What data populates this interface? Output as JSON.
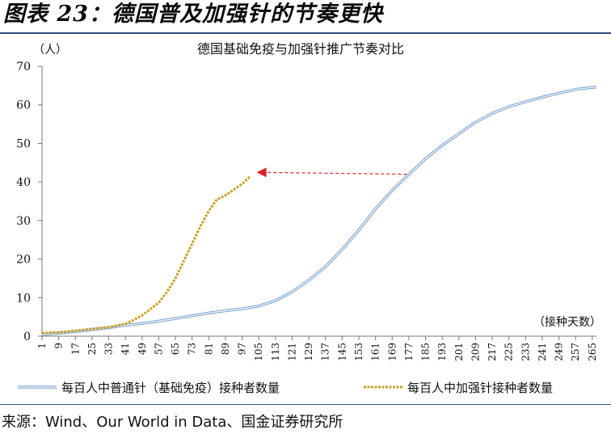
{
  "figure_title": "图表 23：德国普及加强针的节奏更快",
  "source": "来源：Wind、Our World in Data、国金证券研究所",
  "chart_data": {
    "type": "line",
    "title": "德国基础免疫与加强针推广节奏对比",
    "ylabel": "（人）",
    "xlabel": "（接种天数）",
    "ylim": [
      0,
      70
    ],
    "yticks": [
      0,
      10,
      20,
      30,
      40,
      50,
      60,
      70
    ],
    "xlim": [
      1,
      267
    ],
    "xticks": [
      1,
      9,
      17,
      25,
      33,
      41,
      49,
      57,
      65,
      73,
      81,
      89,
      97,
      105,
      113,
      121,
      129,
      137,
      145,
      153,
      161,
      169,
      177,
      185,
      193,
      201,
      209,
      217,
      225,
      233,
      241,
      249,
      257,
      265
    ],
    "grid": false,
    "legend_position": "bottom",
    "series": [
      {
        "name": "每百人中普通针（基础免疫）接种者数量",
        "color": "#7aa3d0",
        "style": "double",
        "x": [
          1,
          9,
          17,
          25,
          33,
          41,
          49,
          57,
          65,
          73,
          81,
          89,
          97,
          105,
          113,
          121,
          129,
          137,
          145,
          153,
          161,
          169,
          177,
          185,
          193,
          201,
          209,
          217,
          225,
          233,
          241,
          249,
          257,
          265,
          267
        ],
        "y": [
          0.4,
          0.8,
          1.2,
          1.7,
          2.2,
          2.8,
          3.3,
          3.9,
          4.6,
          5.3,
          6.0,
          6.6,
          7.1,
          7.8,
          9.2,
          11.5,
          14.5,
          18.0,
          22.5,
          27.5,
          33.0,
          37.8,
          42.0,
          46.0,
          49.5,
          52.5,
          55.5,
          57.8,
          59.5,
          60.8,
          62.0,
          63.0,
          64.0,
          64.5,
          64.6
        ]
      },
      {
        "name": "每百人中加强针接种者数量",
        "color": "#c9a227",
        "style": "dashed",
        "x": [
          1,
          9,
          17,
          25,
          33,
          41,
          45,
          49,
          53,
          57,
          61,
          65,
          69,
          73,
          77,
          81,
          85,
          89,
          93,
          97,
          101
        ],
        "y": [
          0.8,
          1.0,
          1.4,
          1.9,
          2.3,
          3.2,
          4.2,
          5.4,
          7.0,
          8.7,
          11.5,
          15.0,
          19.5,
          24.0,
          28.5,
          32.5,
          35.5,
          36.5,
          38.0,
          39.5,
          41.5
        ]
      }
    ],
    "annotation": {
      "type": "arrow",
      "color": "#e02020",
      "from": [
        176,
        42
      ],
      "to": [
        104,
        42.5
      ]
    }
  }
}
